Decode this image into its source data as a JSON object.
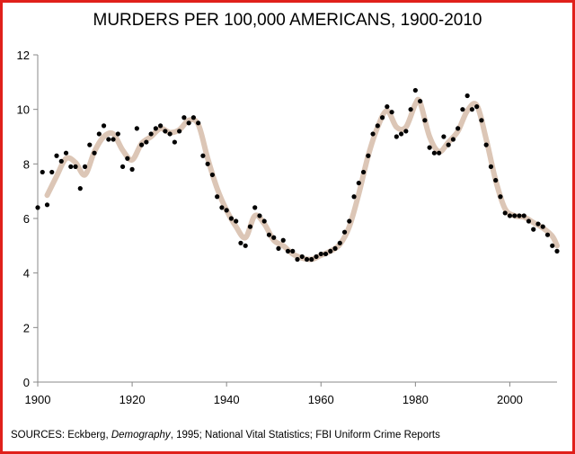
{
  "colors": {
    "frame": "#e0201b",
    "trend": "#dcc6b6",
    "points": "#000000"
  },
  "sources": {
    "prefix": "SOURCES: Eckberg, ",
    "journal": "Demography",
    "suffix": ", 1995; National Vital Statistics; FBI Uniform Crime Reports"
  },
  "chart_data": {
    "type": "scatter",
    "title": "MURDERS PER 100,000 AMERICANS, 1900-2010",
    "xlim": [
      1900,
      2010
    ],
    "ylim": [
      0,
      12
    ],
    "xticks": [
      1900,
      1920,
      1940,
      1960,
      1980,
      2000
    ],
    "yticks": [
      0,
      2,
      4,
      6,
      8,
      10,
      12
    ],
    "grid": false,
    "series": [
      {
        "kind": "points",
        "points": [
          [
            1900,
            6.4
          ],
          [
            1901,
            7.7
          ],
          [
            1902,
            6.5
          ],
          [
            1903,
            7.7
          ],
          [
            1904,
            8.3
          ],
          [
            1905,
            8.1
          ],
          [
            1906,
            8.4
          ],
          [
            1907,
            7.9
          ],
          [
            1908,
            7.9
          ],
          [
            1909,
            7.1
          ],
          [
            1910,
            7.9
          ],
          [
            1911,
            8.7
          ],
          [
            1912,
            8.4
          ],
          [
            1913,
            9.1
          ],
          [
            1914,
            9.4
          ],
          [
            1915,
            8.9
          ],
          [
            1916,
            8.9
          ],
          [
            1917,
            9.1
          ],
          [
            1918,
            7.9
          ],
          [
            1919,
            8.2
          ],
          [
            1920,
            7.8
          ],
          [
            1921,
            9.3
          ],
          [
            1922,
            8.7
          ],
          [
            1923,
            8.8
          ],
          [
            1924,
            9.1
          ],
          [
            1925,
            9.3
          ],
          [
            1926,
            9.4
          ],
          [
            1927,
            9.2
          ],
          [
            1928,
            9.1
          ],
          [
            1929,
            8.8
          ],
          [
            1930,
            9.2
          ],
          [
            1931,
            9.7
          ],
          [
            1932,
            9.5
          ],
          [
            1933,
            9.7
          ],
          [
            1934,
            9.5
          ],
          [
            1935,
            8.3
          ],
          [
            1936,
            8.0
          ],
          [
            1937,
            7.6
          ],
          [
            1938,
            6.8
          ],
          [
            1939,
            6.4
          ],
          [
            1940,
            6.3
          ],
          [
            1941,
            6.0
          ],
          [
            1942,
            5.9
          ],
          [
            1943,
            5.1
          ],
          [
            1944,
            5.0
          ],
          [
            1945,
            5.7
          ],
          [
            1946,
            6.4
          ],
          [
            1947,
            6.1
          ],
          [
            1948,
            5.9
          ],
          [
            1949,
            5.4
          ],
          [
            1950,
            5.3
          ],
          [
            1951,
            4.9
          ],
          [
            1952,
            5.2
          ],
          [
            1953,
            4.8
          ],
          [
            1954,
            4.8
          ],
          [
            1955,
            4.5
          ],
          [
            1956,
            4.6
          ],
          [
            1957,
            4.5
          ],
          [
            1958,
            4.5
          ],
          [
            1959,
            4.6
          ],
          [
            1960,
            4.7
          ],
          [
            1961,
            4.7
          ],
          [
            1962,
            4.8
          ],
          [
            1963,
            4.9
          ],
          [
            1964,
            5.1
          ],
          [
            1965,
            5.5
          ],
          [
            1966,
            5.9
          ],
          [
            1967,
            6.8
          ],
          [
            1968,
            7.3
          ],
          [
            1969,
            7.7
          ],
          [
            1970,
            8.3
          ],
          [
            1971,
            9.1
          ],
          [
            1972,
            9.4
          ],
          [
            1973,
            9.7
          ],
          [
            1974,
            10.1
          ],
          [
            1975,
            9.9
          ],
          [
            1976,
            9.0
          ],
          [
            1977,
            9.1
          ],
          [
            1978,
            9.2
          ],
          [
            1979,
            10.0
          ],
          [
            1980,
            10.7
          ],
          [
            1981,
            10.3
          ],
          [
            1982,
            9.6
          ],
          [
            1983,
            8.6
          ],
          [
            1984,
            8.4
          ],
          [
            1985,
            8.4
          ],
          [
            1986,
            9.0
          ],
          [
            1987,
            8.7
          ],
          [
            1988,
            8.9
          ],
          [
            1989,
            9.3
          ],
          [
            1990,
            10.0
          ],
          [
            1991,
            10.5
          ],
          [
            1992,
            10.0
          ],
          [
            1993,
            10.1
          ],
          [
            1994,
            9.6
          ],
          [
            1995,
            8.7
          ],
          [
            1996,
            7.9
          ],
          [
            1997,
            7.4
          ],
          [
            1998,
            6.8
          ],
          [
            1999,
            6.2
          ],
          [
            2000,
            6.1
          ],
          [
            2001,
            6.1
          ],
          [
            2002,
            6.1
          ],
          [
            2003,
            6.1
          ],
          [
            2004,
            5.9
          ],
          [
            2005,
            5.6
          ],
          [
            2006,
            5.8
          ],
          [
            2007,
            5.7
          ],
          [
            2008,
            5.4
          ],
          [
            2009,
            5.0
          ],
          [
            2010,
            4.8
          ]
        ]
      },
      {
        "kind": "smoothed-trend",
        "points": [
          [
            1902,
            6.85
          ],
          [
            1904,
            7.55
          ],
          [
            1906,
            8.2
          ],
          [
            1908,
            8.05
          ],
          [
            1910,
            7.6
          ],
          [
            1912,
            8.45
          ],
          [
            1914,
            9.0
          ],
          [
            1916,
            9.1
          ],
          [
            1918,
            8.5
          ],
          [
            1920,
            8.15
          ],
          [
            1922,
            8.75
          ],
          [
            1924,
            9.0
          ],
          [
            1926,
            9.3
          ],
          [
            1928,
            9.15
          ],
          [
            1930,
            9.25
          ],
          [
            1932,
            9.6
          ],
          [
            1934,
            9.45
          ],
          [
            1936,
            8.2
          ],
          [
            1938,
            7.1
          ],
          [
            1940,
            6.3
          ],
          [
            1942,
            5.7
          ],
          [
            1944,
            5.3
          ],
          [
            1946,
            6.1
          ],
          [
            1948,
            5.8
          ],
          [
            1950,
            5.2
          ],
          [
            1952,
            5.0
          ],
          [
            1954,
            4.7
          ],
          [
            1956,
            4.55
          ],
          [
            1958,
            4.5
          ],
          [
            1960,
            4.65
          ],
          [
            1962,
            4.8
          ],
          [
            1964,
            5.05
          ],
          [
            1966,
            5.7
          ],
          [
            1968,
            6.9
          ],
          [
            1970,
            8.3
          ],
          [
            1972,
            9.35
          ],
          [
            1974,
            9.95
          ],
          [
            1976,
            9.35
          ],
          [
            1978,
            9.35
          ],
          [
            1980,
            10.2
          ],
          [
            1981,
            10.25
          ],
          [
            1983,
            9.0
          ],
          [
            1985,
            8.45
          ],
          [
            1987,
            8.8
          ],
          [
            1989,
            9.2
          ],
          [
            1991,
            9.95
          ],
          [
            1993,
            10.15
          ],
          [
            1995,
            8.9
          ],
          [
            1997,
            7.4
          ],
          [
            1999,
            6.35
          ],
          [
            2001,
            6.1
          ],
          [
            2003,
            6.05
          ],
          [
            2005,
            5.85
          ],
          [
            2007,
            5.65
          ],
          [
            2009,
            5.35
          ],
          [
            2010,
            5.0
          ]
        ]
      }
    ]
  }
}
